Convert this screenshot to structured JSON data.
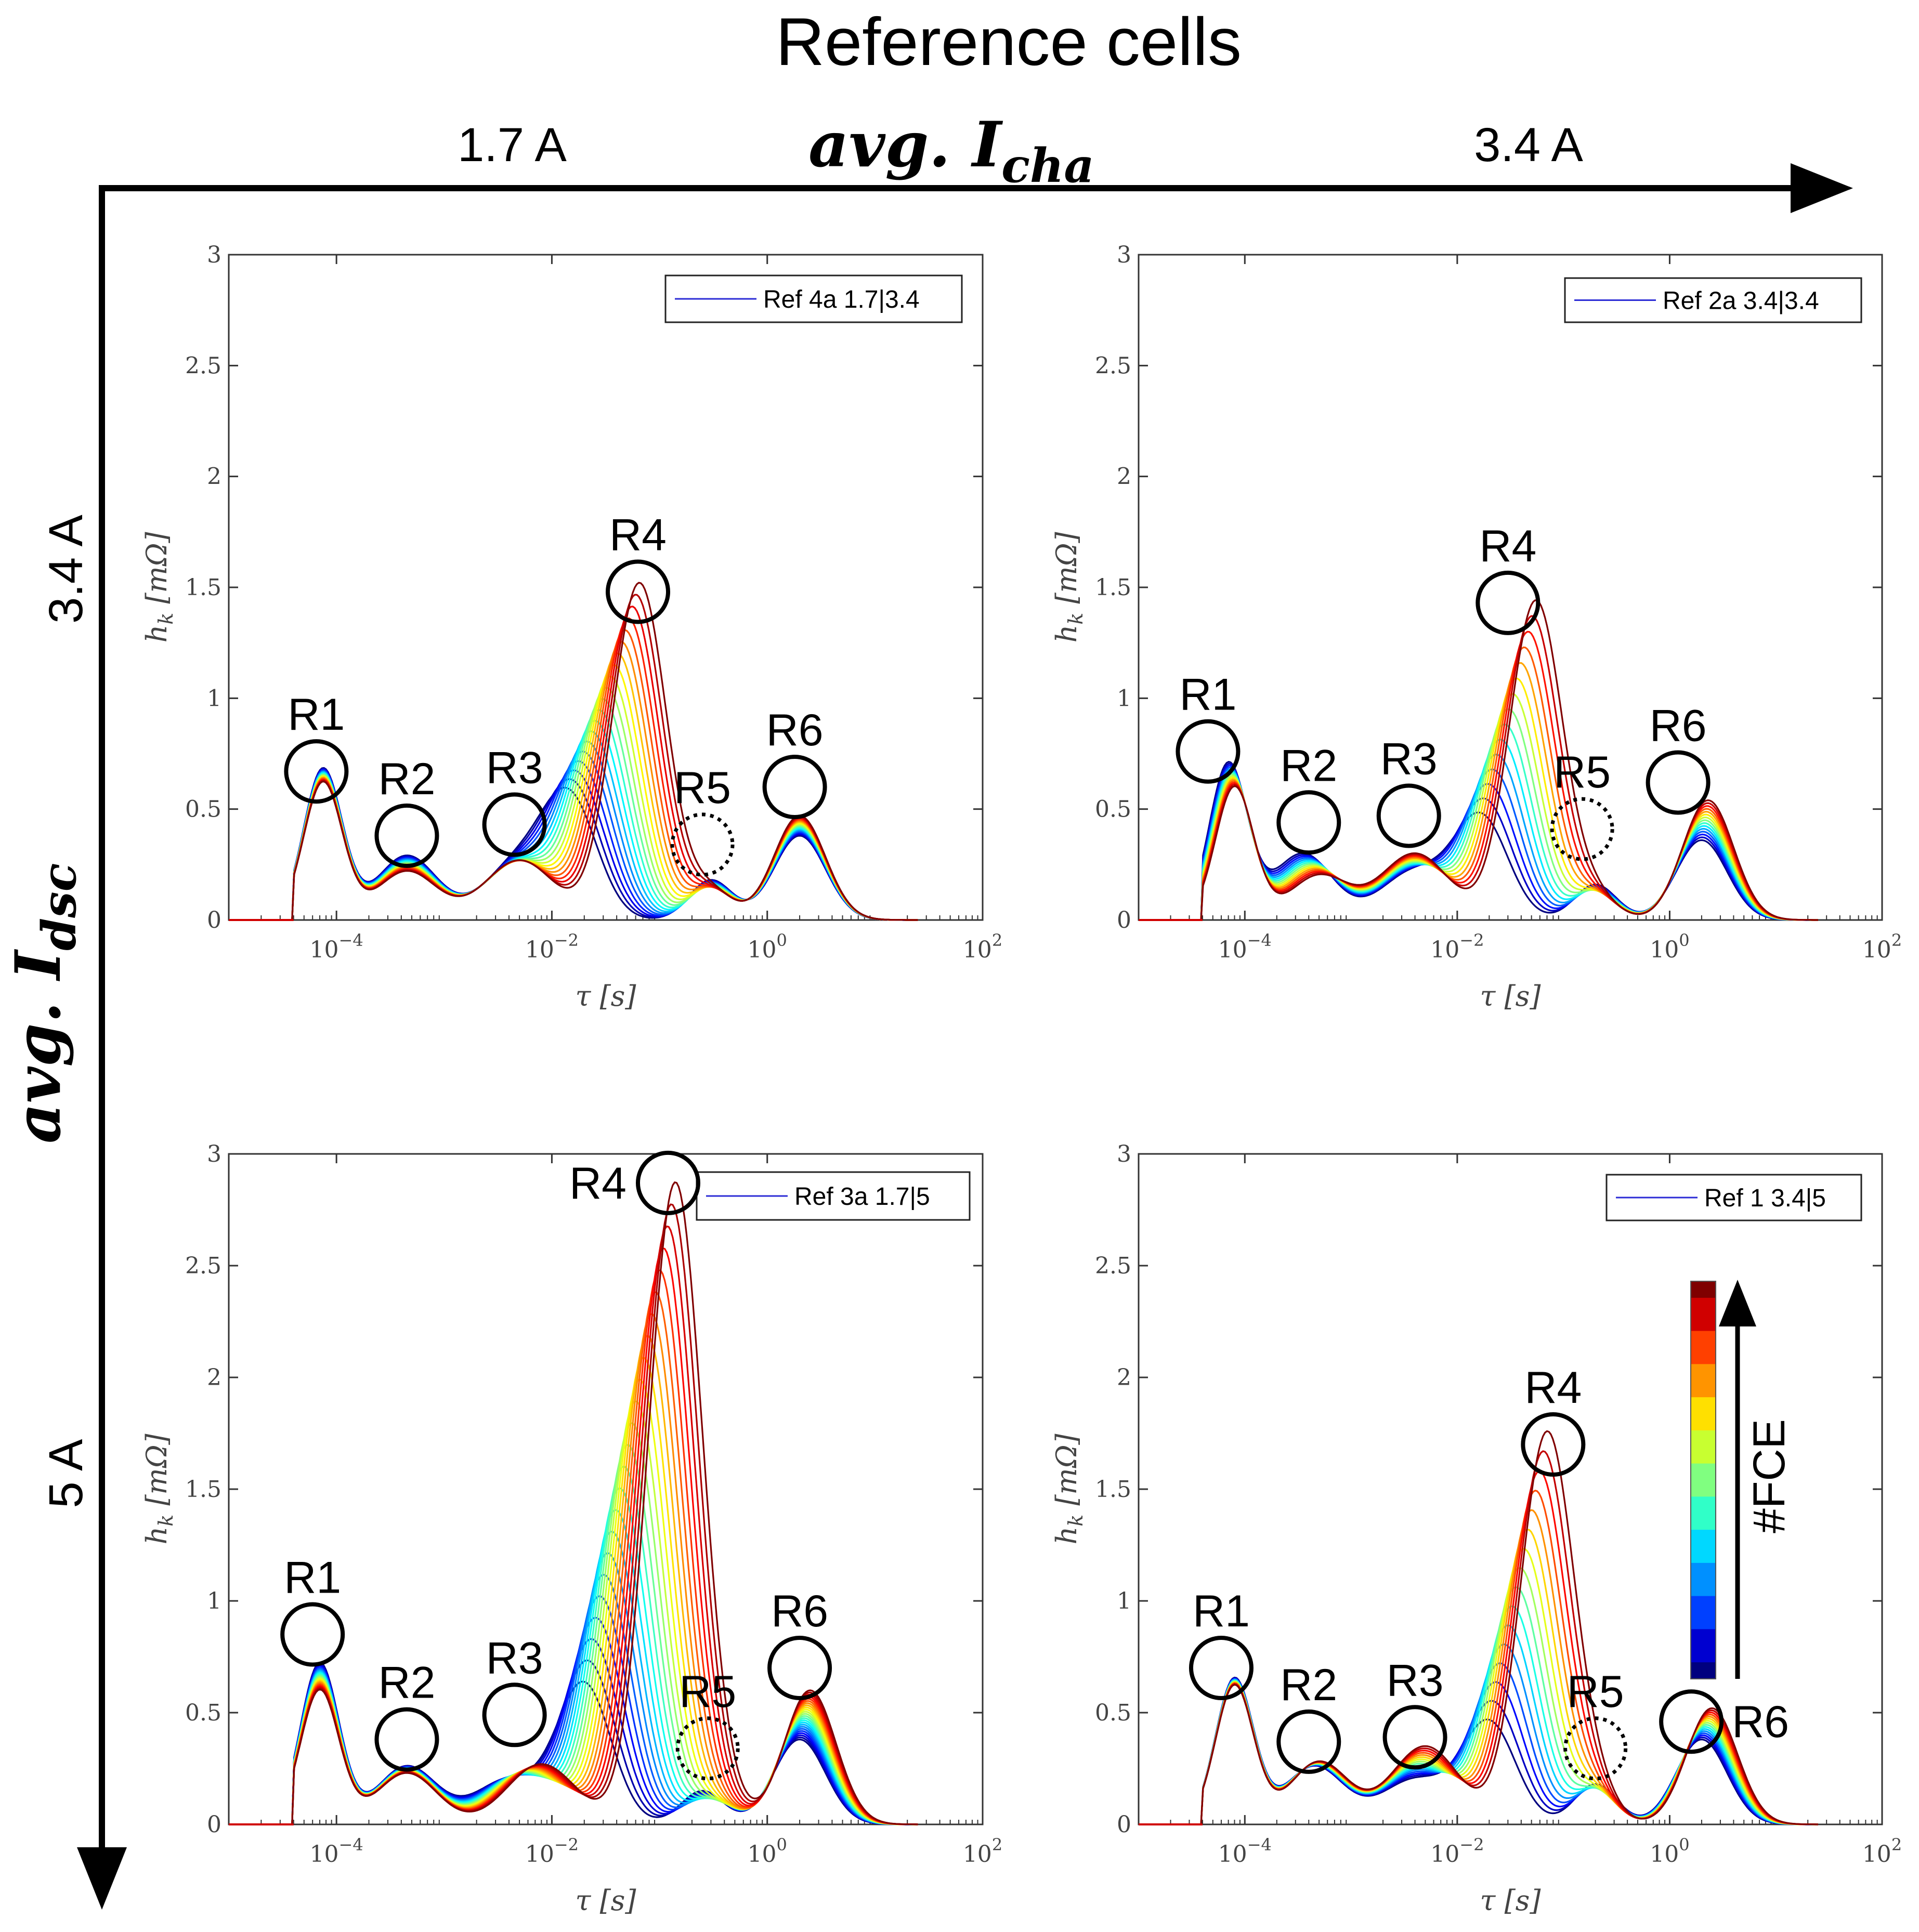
{
  "figure": {
    "title": "Reference cells",
    "x_axis_title": "avg. ",
    "x_axis_symbol": "I",
    "x_axis_subscript": "cha",
    "y_axis_title": "avg. ",
    "y_axis_symbol": "I",
    "y_axis_subscript": "dsc",
    "col_labels": [
      "1.7 A",
      "3.4 A"
    ],
    "row_labels": [
      "3.4 A",
      "5 A"
    ],
    "colorbar_label": "#FCE",
    "colorbar_colors": [
      "#00007f",
      "#0000d0",
      "#0040ff",
      "#0090ff",
      "#00d8ff",
      "#30ffc8",
      "#80ff80",
      "#c8ff30",
      "#ffe000",
      "#ff9400",
      "#ff4000",
      "#d00000",
      "#7f0000"
    ]
  },
  "chart_data": [
    {
      "type": "line",
      "id": "top-left",
      "legend": "Ref 4a 1.7|3.4",
      "xlabel": "τ [s]",
      "ylabel": "h_k [mΩ]",
      "xscale": "log",
      "xlim": [
        1e-05,
        100
      ],
      "ylim": [
        0,
        3
      ],
      "xticks": [
        {
          "value": 0.0001,
          "label": "10^-4"
        },
        {
          "value": 0.01,
          "label": "10^-2"
        },
        {
          "value": 1,
          "label": "10^0"
        },
        {
          "value": 100,
          "label": "10^2"
        }
      ],
      "yticks": [
        0,
        0.5,
        1,
        1.5,
        2,
        2.5,
        3
      ],
      "n_curves": 20,
      "peaks_first": {
        "R1": [
          7.5e-05,
          0.68
        ],
        "R2": [
          0.00045,
          0.29
        ],
        "R3": [
          0.005,
          0.26
        ],
        "R4": [
          0.015,
          0.5
        ],
        "R5": [
          0.3,
          0.18
        ],
        "R6": [
          2.0,
          0.38
        ]
      },
      "peaks_last": {
        "R1": [
          7.5e-05,
          0.62
        ],
        "R2": [
          0.00045,
          0.22
        ],
        "R3": [
          0.005,
          0.27
        ],
        "R4": [
          0.065,
          1.52
        ],
        "R5": [
          0.3,
          0.13
        ],
        "R6": [
          2.0,
          0.47
        ]
      },
      "annotations": [
        {
          "label": "R1",
          "x": 6.5e-05,
          "y": 0.67,
          "dashed": false
        },
        {
          "label": "R2",
          "x": 0.00045,
          "y": 0.38,
          "dashed": false
        },
        {
          "label": "R3",
          "x": 0.0045,
          "y": 0.43,
          "dashed": false
        },
        {
          "label": "R4",
          "x": 0.063,
          "y": 1.48,
          "dashed": false
        },
        {
          "label": "R5",
          "x": 0.25,
          "y": 0.34,
          "dashed": true
        },
        {
          "label": "R6",
          "x": 1.8,
          "y": 0.6,
          "dashed": false
        }
      ]
    },
    {
      "type": "line",
      "id": "top-right",
      "legend": "Ref 2a 3.4|3.4",
      "xlabel": "τ [s]",
      "ylabel": "h_k [mΩ]",
      "xscale": "log",
      "xlim": [
        1e-05,
        100
      ],
      "ylim": [
        0,
        3
      ],
      "xticks": [
        {
          "value": 0.0001,
          "label": "10^-4"
        },
        {
          "value": 0.01,
          "label": "10^-2"
        },
        {
          "value": 1,
          "label": "10^0"
        },
        {
          "value": 100,
          "label": "10^2"
        }
      ],
      "yticks": [
        0,
        0.5,
        1,
        1.5,
        2,
        2.5,
        3
      ],
      "n_curves": 15,
      "peaks_first": {
        "R1": [
          7e-05,
          0.7
        ],
        "R2": [
          0.00035,
          0.3
        ],
        "R3": [
          0.004,
          0.22
        ],
        "R4": [
          0.017,
          0.45
        ],
        "R5": [
          0.2,
          0.16
        ],
        "R6": [
          2.0,
          0.36
        ]
      },
      "peaks_last": {
        "R1": [
          8e-05,
          0.6
        ],
        "R2": [
          0.0005,
          0.2
        ],
        "R3": [
          0.004,
          0.3
        ],
        "R4": [
          0.055,
          1.44
        ],
        "R5": [
          0.2,
          0.1
        ],
        "R6": [
          2.3,
          0.54
        ]
      },
      "annotations": [
        {
          "label": "R1",
          "x": 4.5e-05,
          "y": 0.76,
          "dashed": false
        },
        {
          "label": "R2",
          "x": 0.0004,
          "y": 0.44,
          "dashed": false
        },
        {
          "label": "R3",
          "x": 0.0035,
          "y": 0.47,
          "dashed": false
        },
        {
          "label": "R4",
          "x": 0.03,
          "y": 1.43,
          "dashed": false
        },
        {
          "label": "R5",
          "x": 0.15,
          "y": 0.41,
          "dashed": true
        },
        {
          "label": "R6",
          "x": 1.2,
          "y": 0.62,
          "dashed": false
        }
      ]
    },
    {
      "type": "line",
      "id": "bottom-left",
      "legend": "Ref 3a 1.7|5",
      "xlabel": "τ [s]",
      "ylabel": "h_k [mΩ]",
      "xscale": "log",
      "xlim": [
        1e-05,
        100
      ],
      "ylim": [
        0,
        3
      ],
      "xticks": [
        {
          "value": 0.0001,
          "label": "10^-4"
        },
        {
          "value": 0.01,
          "label": "10^-2"
        },
        {
          "value": 1,
          "label": "10^0"
        },
        {
          "value": 100,
          "label": "10^2"
        }
      ],
      "yticks": [
        0,
        0.5,
        1,
        1.5,
        2,
        2.5,
        3
      ],
      "n_curves": 24,
      "peaks_first": {
        "R1": [
          7e-05,
          0.72
        ],
        "R2": [
          0.00045,
          0.26
        ],
        "R3": [
          0.004,
          0.2
        ],
        "R4": [
          0.02,
          0.62
        ],
        "R5": [
          0.25,
          0.15
        ],
        "R6": [
          2.0,
          0.38
        ]
      },
      "peaks_last": {
        "R1": [
          7e-05,
          0.6
        ],
        "R2": [
          0.00045,
          0.23
        ],
        "R3": [
          0.008,
          0.27
        ],
        "R4": [
          0.14,
          2.87
        ],
        "R5": [
          0.4,
          0.05
        ],
        "R6": [
          2.5,
          0.6
        ]
      },
      "annotations": [
        {
          "label": "R1",
          "x": 6e-05,
          "y": 0.85,
          "dashed": false
        },
        {
          "label": "R2",
          "x": 0.00045,
          "y": 0.38,
          "dashed": false
        },
        {
          "label": "R3",
          "x": 0.0045,
          "y": 0.49,
          "dashed": false
        },
        {
          "label": "R4",
          "x": 0.12,
          "y": 2.87,
          "dashed": false
        },
        {
          "label": "R5",
          "x": 0.28,
          "y": 0.34,
          "dashed": true
        },
        {
          "label": "R6",
          "x": 2.0,
          "y": 0.7,
          "dashed": false
        }
      ]
    },
    {
      "type": "line",
      "id": "bottom-right",
      "legend": "Ref 1 3.4|5",
      "xlabel": "τ [s]",
      "ylabel": "h_k [mΩ]",
      "xscale": "log",
      "xlim": [
        1e-05,
        100
      ],
      "ylim": [
        0,
        3
      ],
      "xticks": [
        {
          "value": 0.0001,
          "label": "10^-4"
        },
        {
          "value": 0.01,
          "label": "10^-2"
        },
        {
          "value": 1,
          "label": "10^0"
        },
        {
          "value": 100,
          "label": "10^2"
        }
      ],
      "yticks": [
        0,
        0.5,
        1,
        1.5,
        2,
        2.5,
        3
      ],
      "n_curves": 16,
      "peaks_first": {
        "R1": [
          8e-05,
          0.65
        ],
        "R2": [
          0.00045,
          0.26
        ],
        "R3": [
          0.004,
          0.2
        ],
        "R4": [
          0.02,
          0.45
        ],
        "R5": [
          0.2,
          0.18
        ],
        "R6": [
          2.0,
          0.38
        ]
      },
      "peaks_last": {
        "R1": [
          8e-05,
          0.62
        ],
        "R2": [
          0.0005,
          0.28
        ],
        "R3": [
          0.005,
          0.35
        ],
        "R4": [
          0.07,
          1.75
        ],
        "R5": [
          0.2,
          0.12
        ],
        "R6": [
          2.5,
          0.52
        ]
      },
      "annotations": [
        {
          "label": "R1",
          "x": 6e-05,
          "y": 0.7,
          "dashed": false
        },
        {
          "label": "R2",
          "x": 0.0004,
          "y": 0.37,
          "dashed": false
        },
        {
          "label": "R3",
          "x": 0.004,
          "y": 0.39,
          "dashed": false
        },
        {
          "label": "R4",
          "x": 0.08,
          "y": 1.7,
          "dashed": false
        },
        {
          "label": "R5",
          "x": 0.2,
          "y": 0.34,
          "dashed": true
        },
        {
          "label": "R6",
          "x": 1.6,
          "y": 0.46,
          "dashed": false
        }
      ]
    }
  ]
}
